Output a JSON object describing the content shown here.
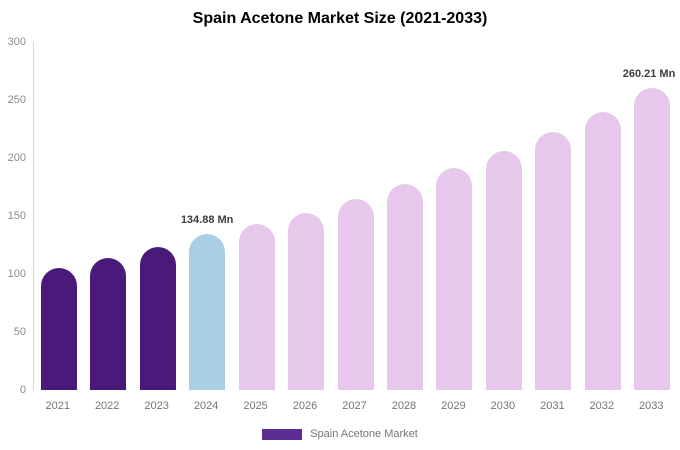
{
  "chart_data": {
    "type": "bar",
    "title": "Spain Acetone Market Size (2021-2033)",
    "categories": [
      "2021",
      "2022",
      "2023",
      "2024",
      "2025",
      "2026",
      "2027",
      "2028",
      "2029",
      "2030",
      "2031",
      "2032",
      "2033"
    ],
    "values": [
      105,
      114,
      123,
      134.88,
      143,
      153,
      165,
      178,
      191,
      206,
      222,
      240,
      260.21
    ],
    "unit": "Mn",
    "bar_colors": [
      "#4a1a7a",
      "#4a1a7a",
      "#4a1a7a",
      "#a9cfe5",
      "#e7c7eb",
      "#e7c7eb",
      "#e7c7eb",
      "#e7c7eb",
      "#e7c7eb",
      "#e7c7eb",
      "#e7c7eb",
      "#e7c7eb",
      "#e7c7eb"
    ],
    "annotations": [
      {
        "category": "2024",
        "text": "134.88 Mn"
      },
      {
        "category": "2033",
        "text": "260.21 Mn"
      }
    ],
    "ylim": [
      0,
      300
    ],
    "yticks": [
      0,
      50,
      100,
      150,
      200,
      250,
      300
    ],
    "grid": false,
    "legend_position": "bottom",
    "legend": [
      {
        "label": "Spain Acetone Market",
        "color": "#5c2d91"
      }
    ]
  }
}
